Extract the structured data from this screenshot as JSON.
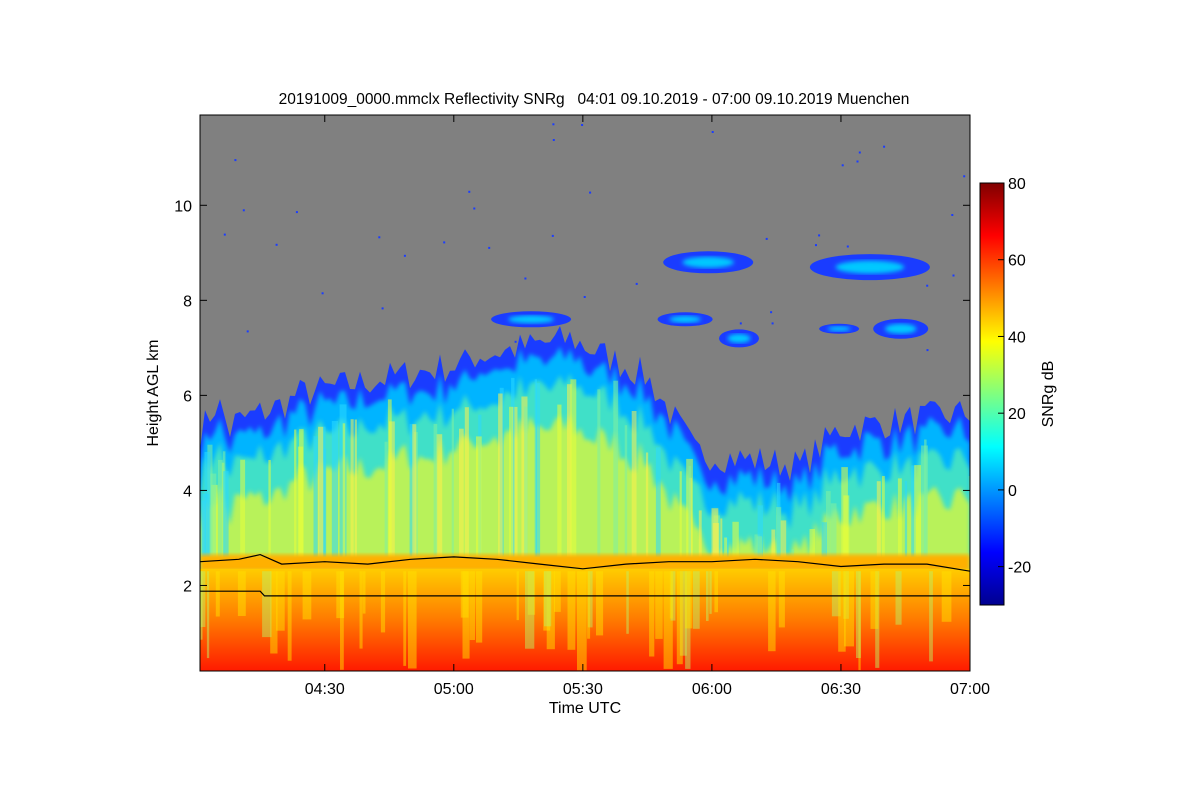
{
  "chart_data": {
    "type": "heatmap",
    "title": "20191009_0000.mmclx Reflectivity SNRg   04:01 09.10.2019 - 07:00 09.10.2019 Muenchen",
    "xlabel": "Time UTC",
    "ylabel": "Height AGL km",
    "xlim": [
      "04:01",
      "07:00"
    ],
    "ylim": [
      0.2,
      11.9
    ],
    "x_ticks": [
      "04:30",
      "05:00",
      "05:30",
      "06:00",
      "06:30",
      "07:00"
    ],
    "y_ticks": [
      "2",
      "4",
      "6",
      "8",
      "10"
    ],
    "colorbar": {
      "label": "SNRg dB",
      "range": [
        -30,
        80
      ],
      "ticks": [
        "-20",
        "0",
        "20",
        "40",
        "60",
        "80"
      ],
      "colormap": "jet",
      "no_signal_color": "#808080"
    },
    "lines": [
      {
        "points": [
          [
            "04:01",
            2.5
          ],
          [
            "04:10",
            2.55
          ],
          [
            "04:15",
            2.65
          ],
          [
            "04:20",
            2.45
          ],
          [
            "04:30",
            2.5
          ],
          [
            "04:40",
            2.45
          ],
          [
            "04:50",
            2.55
          ],
          [
            "05:00",
            2.6
          ],
          [
            "05:10",
            2.55
          ],
          [
            "05:20",
            2.45
          ],
          [
            "05:30",
            2.35
          ],
          [
            "05:40",
            2.45
          ],
          [
            "05:50",
            2.5
          ],
          [
            "06:00",
            2.5
          ],
          [
            "06:10",
            2.55
          ],
          [
            "06:20",
            2.5
          ],
          [
            "06:30",
            2.4
          ],
          [
            "06:40",
            2.45
          ],
          [
            "06:50",
            2.45
          ],
          [
            "07:00",
            2.3
          ]
        ]
      },
      {
        "points": [
          [
            "04:01",
            1.88
          ],
          [
            "04:15",
            1.88
          ],
          [
            "04:16",
            1.78
          ],
          [
            "07:00",
            1.78
          ]
        ]
      }
    ]
  }
}
